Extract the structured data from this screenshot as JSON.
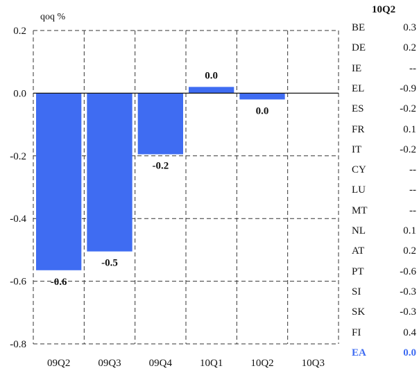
{
  "chart_data": {
    "type": "bar",
    "ylabel": "qoq %",
    "ylim": [
      -0.8,
      0.2
    ],
    "yticks": [
      0.2,
      0.0,
      -0.2,
      -0.4,
      -0.6,
      -0.8
    ],
    "ytick_labels": [
      "0.2",
      "0.0",
      "-0.2",
      "-0.4",
      "-0.6",
      "-0.8"
    ],
    "categories": [
      "09Q2",
      "09Q3",
      "09Q4",
      "10Q1",
      "10Q2",
      "10Q3"
    ],
    "values": [
      -0.565,
      -0.505,
      -0.195,
      0.02,
      -0.02,
      null
    ],
    "data_labels": [
      "-0.6",
      "-0.5",
      "-0.2",
      "0.0",
      "0.0",
      ""
    ],
    "bar_color": "#3f6cf2",
    "grid": true,
    "grid_style": "dashed"
  },
  "side_table": {
    "header": "10Q2",
    "rows": [
      {
        "country": "BE",
        "value": "0.3"
      },
      {
        "country": "DE",
        "value": "0.2"
      },
      {
        "country": "IE",
        "value": "--"
      },
      {
        "country": "EL",
        "value": "-0.9"
      },
      {
        "country": "ES",
        "value": "-0.2"
      },
      {
        "country": "FR",
        "value": "0.1"
      },
      {
        "country": "IT",
        "value": "-0.2"
      },
      {
        "country": "CY",
        "value": "--"
      },
      {
        "country": "LU",
        "value": "--"
      },
      {
        "country": "MT",
        "value": "--"
      },
      {
        "country": "NL",
        "value": "0.1"
      },
      {
        "country": "AT",
        "value": "0.2"
      },
      {
        "country": "PT",
        "value": "-0.6"
      },
      {
        "country": "SI",
        "value": "-0.3"
      },
      {
        "country": "SK",
        "value": "-0.3"
      },
      {
        "country": "FI",
        "value": "0.4"
      }
    ],
    "total": {
      "country": "EA",
      "value": "0.0",
      "color": "#3f6cf2"
    }
  }
}
